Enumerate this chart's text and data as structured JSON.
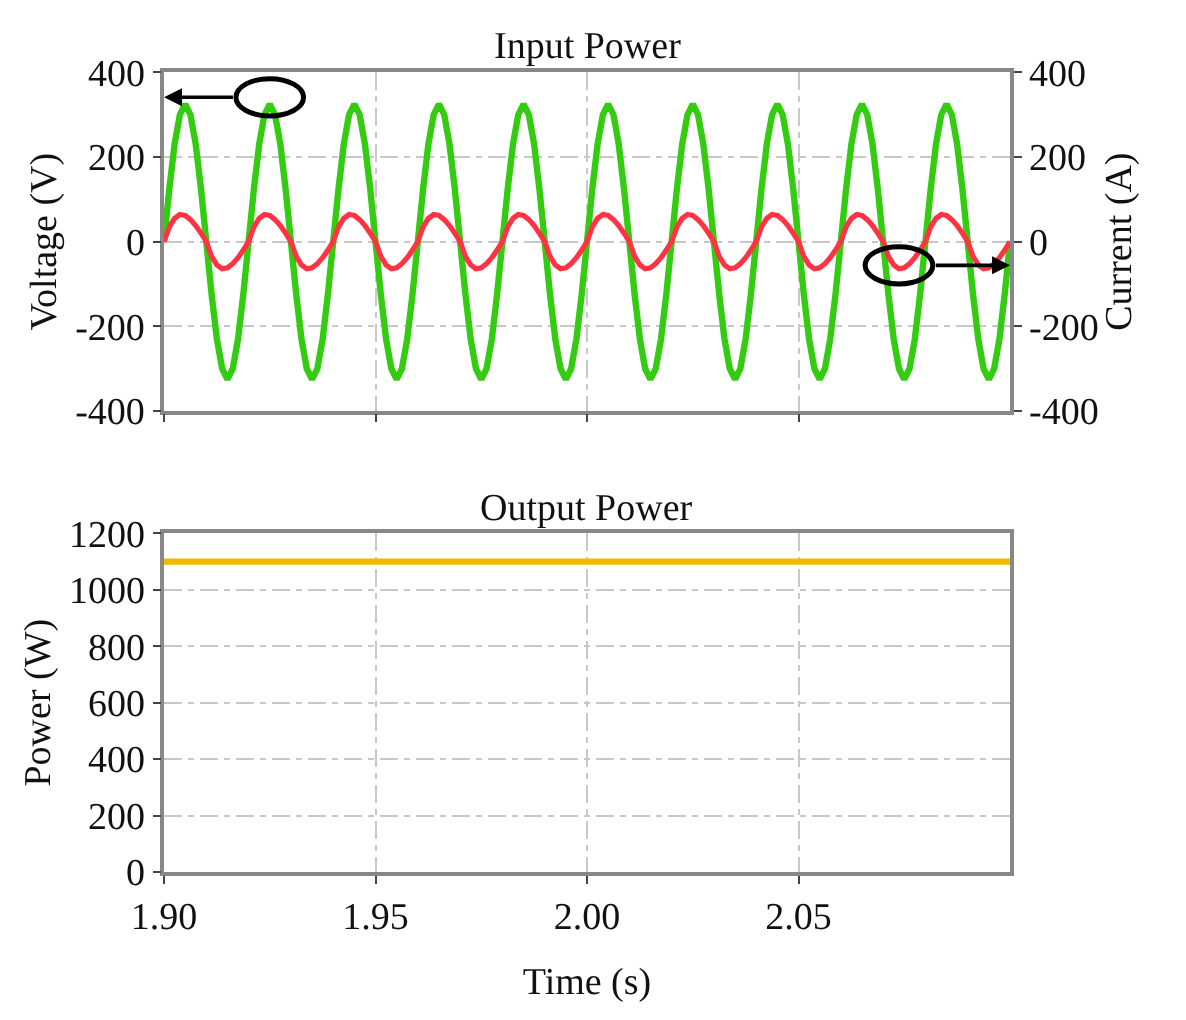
{
  "chart_data": [
    {
      "type": "line",
      "title": "Input Power",
      "ylabel": "Voltage (V)",
      "y2label": "Current (A)",
      "x": [
        1.9,
        1.90125,
        1.9025,
        1.90375,
        1.905,
        1.90625,
        1.9075,
        1.90875,
        1.91,
        1.91125,
        1.9125,
        1.91375,
        1.915,
        1.91625,
        1.9175,
        1.91875,
        1.92,
        1.92125,
        1.9225,
        1.92375,
        1.925,
        1.92625,
        1.9275,
        1.92875,
        1.93,
        1.93125,
        1.9325,
        1.93375,
        1.935,
        1.93625,
        1.9375,
        1.93875,
        1.94,
        1.94125,
        1.9425,
        1.94375,
        1.945,
        1.94625,
        1.9475,
        1.94875,
        1.95,
        1.95125,
        1.9525,
        1.95375,
        1.955,
        1.95625,
        1.9575,
        1.95875,
        1.96,
        1.96125,
        1.9625,
        1.96375,
        1.965,
        1.96625,
        1.9675,
        1.96875,
        1.97,
        1.97125,
        1.9725,
        1.97375,
        1.975,
        1.97625,
        1.9775,
        1.97875,
        1.98,
        1.98125,
        1.9825,
        1.98375,
        1.985,
        1.98625,
        1.9875,
        1.98875,
        1.99,
        1.99125,
        1.9925,
        1.99375,
        1.995,
        1.99625,
        1.9975,
        1.99875,
        2.0,
        2.00125,
        2.0025,
        2.00375,
        2.005,
        2.00625,
        2.0075,
        2.00875,
        2.01,
        2.01125,
        2.0125,
        2.01375,
        2.015,
        2.01625,
        2.0175,
        2.01875,
        2.02,
        2.02125,
        2.0225,
        2.02375,
        2.025,
        2.02625,
        2.0275,
        2.02875,
        2.03,
        2.03125,
        2.0325,
        2.03375,
        2.035,
        2.03625,
        2.0375,
        2.03875,
        2.04,
        2.04125,
        2.0425,
        2.04375,
        2.045,
        2.04625,
        2.0475,
        2.04875,
        2.05,
        2.05125,
        2.0525,
        2.05375,
        2.055,
        2.05625,
        2.0575,
        2.05875,
        2.06,
        2.06125,
        2.0625,
        2.06375,
        2.065,
        2.06625,
        2.0675,
        2.06875,
        2.07,
        2.07125,
        2.0725,
        2.07375,
        2.075,
        2.07625,
        2.0775,
        2.07875,
        2.08,
        2.08125,
        2.0825,
        2.08375,
        2.085,
        2.08625,
        2.0875,
        2.08875,
        2.09,
        2.09125,
        2.0925,
        2.09375,
        2.095,
        2.09625,
        2.0975,
        2.09875,
        2.1
      ],
      "series": [
        {
          "color": "#33cc11",
          "axis": "y",
          "values": [
            0,
            124,
            230,
            300,
            325,
            300,
            230,
            124,
            0,
            -124,
            -230,
            -300,
            -325,
            -300,
            -230,
            -124,
            0,
            124,
            230,
            300,
            325,
            300,
            230,
            124,
            0,
            -124,
            -230,
            -300,
            -325,
            -300,
            -230,
            -124,
            0,
            124,
            230,
            300,
            325,
            300,
            230,
            124,
            0,
            -124,
            -230,
            -300,
            -325,
            -300,
            -230,
            -124,
            0,
            124,
            230,
            300,
            325,
            300,
            230,
            124,
            0,
            -124,
            -230,
            -300,
            -325,
            -300,
            -230,
            -124,
            0,
            124,
            230,
            300,
            325,
            300,
            230,
            124,
            0,
            -124,
            -230,
            -300,
            -325,
            -300,
            -230,
            -124,
            0,
            124,
            230,
            300,
            325,
            300,
            230,
            124,
            0,
            -124,
            -230,
            -300,
            -325,
            -300,
            -230,
            -124,
            0,
            124,
            230,
            300,
            325,
            300,
            230,
            124,
            0,
            -124,
            -230,
            -300,
            -325,
            -300,
            -230,
            -124,
            0,
            124,
            230,
            300,
            325,
            300,
            230,
            124,
            0,
            -124,
            -230,
            -300,
            -325,
            -300,
            -230,
            -124,
            0,
            124,
            230,
            300,
            325,
            300,
            230,
            124,
            0,
            -124,
            -230,
            -300,
            -325,
            -300,
            -230,
            -124,
            0,
            124,
            230,
            300,
            325,
            300,
            230,
            124,
            0,
            -124,
            -230,
            -300,
            -325,
            -300,
            -230,
            -124,
            0
          ]
        },
        {
          "color": "#ff3344",
          "axis": "y2",
          "values": [
            0,
            35,
            55,
            64,
            62,
            52,
            38,
            20,
            0,
            -35,
            -55,
            -64,
            -62,
            -52,
            -38,
            -20,
            0,
            35,
            55,
            64,
            62,
            52,
            38,
            20,
            0,
            -35,
            -55,
            -64,
            -62,
            -52,
            -38,
            -20,
            0,
            35,
            55,
            64,
            62,
            52,
            38,
            20,
            0,
            -35,
            -55,
            -64,
            -62,
            -52,
            -38,
            -20,
            0,
            35,
            55,
            64,
            62,
            52,
            38,
            20,
            0,
            -35,
            -55,
            -64,
            -62,
            -52,
            -38,
            -20,
            0,
            35,
            55,
            64,
            62,
            52,
            38,
            20,
            0,
            -35,
            -55,
            -64,
            -62,
            -52,
            -38,
            -20,
            0,
            35,
            55,
            64,
            62,
            52,
            38,
            20,
            0,
            -35,
            -55,
            -64,
            -62,
            -52,
            -38,
            -20,
            0,
            35,
            55,
            64,
            62,
            52,
            38,
            20,
            0,
            -35,
            -55,
            -64,
            -62,
            -52,
            -38,
            -20,
            0,
            35,
            55,
            64,
            62,
            52,
            38,
            20,
            0,
            -35,
            -55,
            -64,
            -62,
            -52,
            -38,
            -20,
            0,
            35,
            55,
            64,
            62,
            52,
            38,
            20,
            0,
            -35,
            -55,
            -64,
            -62,
            -52,
            -38,
            -20,
            0,
            35,
            55,
            64,
            62,
            52,
            38,
            20,
            0,
            -35,
            -55,
            -64,
            -62,
            -52,
            -38,
            -20,
            0
          ]
        }
      ],
      "xlim": [
        1.9,
        2.1
      ],
      "xticks": [
        1.9,
        1.95,
        2.0,
        2.05
      ],
      "ylim": [
        -400,
        400
      ],
      "yticks": [
        -400,
        -200,
        0,
        200,
        400
      ],
      "y2lim": [
        -400,
        400
      ],
      "y2ticks": [
        -400,
        -200,
        0,
        200,
        400
      ],
      "tick_labels": "y",
      "grid": true,
      "marker": "none",
      "line_style": "solid"
    },
    {
      "type": "line",
      "title": "Output Power",
      "xlabel": "Time (s)",
      "ylabel": "Power (W)",
      "x": [
        1.9,
        1.91,
        1.92,
        1.93,
        1.94,
        1.95,
        1.96,
        1.97,
        1.98,
        1.99,
        2.0,
        2.01,
        2.02,
        2.03,
        2.04,
        2.05,
        2.06,
        2.07,
        2.08,
        2.09,
        2.1
      ],
      "series": [
        {
          "color": "#f5b800",
          "values": [
            1100,
            1100,
            1100,
            1100,
            1100,
            1100,
            1100,
            1100,
            1100,
            1100,
            1100,
            1100,
            1100,
            1100,
            1100,
            1100,
            1100,
            1100,
            1100,
            1100,
            1100
          ]
        }
      ],
      "xlim": [
        1.9,
        2.1
      ],
      "xticks": [
        {
          "value": 1.9,
          "label": "1.90"
        },
        {
          "value": 1.95,
          "label": "1.95"
        },
        {
          "value": 2.0,
          "label": "2.00"
        },
        {
          "value": 2.05,
          "label": "2.05"
        }
      ],
      "ylim": [
        0,
        1200
      ],
      "yticks": [
        0,
        200,
        400,
        600,
        800,
        1000,
        1200
      ],
      "grid": true,
      "marker": "none",
      "line_style": "solid"
    }
  ]
}
